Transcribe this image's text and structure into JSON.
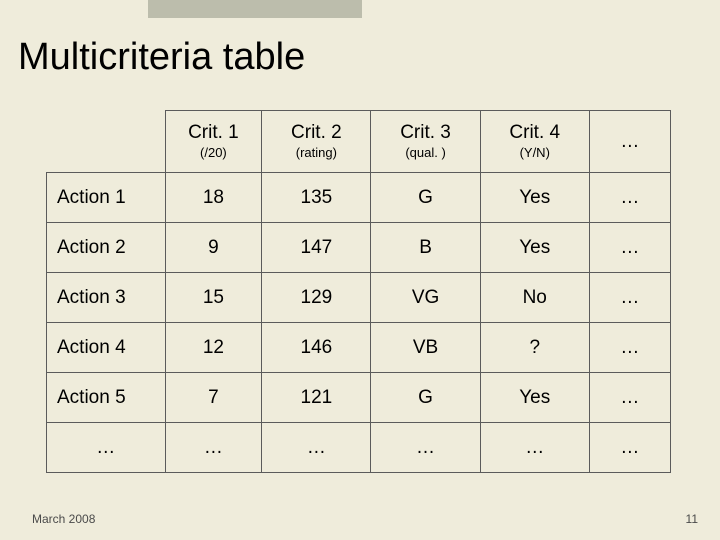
{
  "slide": {
    "title": "Multicriteria table",
    "footer_date": "March 2008",
    "page_number": "11",
    "background_color": "#efecdb",
    "topbar_color": "#bcbdac",
    "border_color": "#5b5b5b",
    "title_fontsize": 38,
    "header_fontsize": 19,
    "subheader_fontsize": 13,
    "cell_fontsize": 19,
    "footer_fontsize": 12
  },
  "table": {
    "ellipsis": "…",
    "columns": [
      {
        "header": "Crit. 1",
        "sub": "(/20)"
      },
      {
        "header": "Crit. 2",
        "sub": "(rating)"
      },
      {
        "header": "Crit. 3",
        "sub": "(qual. )"
      },
      {
        "header": "Crit. 4",
        "sub": "(Y/N)"
      }
    ],
    "rows": [
      {
        "label": "Action 1",
        "cells": [
          "18",
          "135",
          "G",
          "Yes",
          "…"
        ]
      },
      {
        "label": "Action 2",
        "cells": [
          "9",
          "147",
          "B",
          "Yes",
          "…"
        ]
      },
      {
        "label": "Action 3",
        "cells": [
          "15",
          "129",
          "VG",
          "No",
          "…"
        ]
      },
      {
        "label": "Action 4",
        "cells": [
          "12",
          "146",
          "VB",
          "?",
          "…"
        ]
      },
      {
        "label": "Action 5",
        "cells": [
          "7",
          "121",
          "G",
          "Yes",
          "…"
        ]
      },
      {
        "label": "…",
        "cells": [
          "…",
          "…",
          "…",
          "…",
          "…"
        ]
      }
    ]
  }
}
